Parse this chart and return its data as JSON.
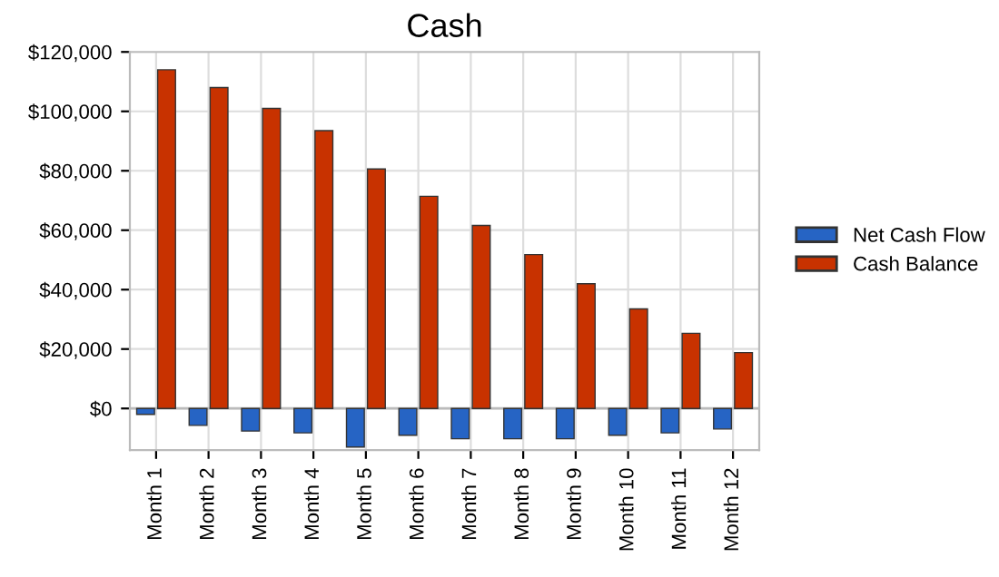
{
  "chart_data": {
    "type": "bar",
    "title": "Cash",
    "categories": [
      "Month 1",
      "Month 2",
      "Month 3",
      "Month 4",
      "Month 5",
      "Month 6",
      "Month 7",
      "Month 8",
      "Month 9",
      "Month 10",
      "Month 11",
      "Month 12"
    ],
    "series": [
      {
        "name": "Net Cash Flow",
        "color": "#2664c4",
        "values": [
          -2000,
          -5700,
          -7600,
          -8200,
          -13000,
          -9000,
          -10200,
          -10200,
          -10200,
          -9000,
          -8200,
          -6900
        ]
      },
      {
        "name": "Cash Balance",
        "color": "#c83200",
        "values": [
          114000,
          108000,
          101000,
          93500,
          80600,
          71400,
          61600,
          51800,
          42000,
          33500,
          25300,
          18800
        ]
      }
    ],
    "ylim": [
      -14000,
      120000
    ],
    "yticks": [
      {
        "value": 0,
        "label": "$0"
      },
      {
        "value": 20000,
        "label": "$20,000"
      },
      {
        "value": 40000,
        "label": "$40,000"
      },
      {
        "value": 60000,
        "label": "$60,000"
      },
      {
        "value": 80000,
        "label": "$80,000"
      },
      {
        "value": 100000,
        "label": "$100,000"
      },
      {
        "value": 120000,
        "label": "$120,000"
      }
    ],
    "grid": true,
    "legend": "right"
  }
}
